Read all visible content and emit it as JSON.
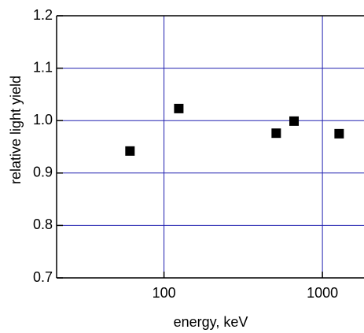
{
  "chart_data": {
    "type": "scatter",
    "x_label": "energy, keV",
    "y_label": "relative light yield",
    "series": [
      {
        "color": "#000000",
        "x": [
          61,
          124,
          511,
          662,
          1275
        ],
        "values": [
          0.942,
          1.023,
          0.976,
          0.999,
          0.975
        ]
      }
    ],
    "xlim": [
      21,
      1830
    ],
    "xscale": "log",
    "xticks": [
      100,
      1000
    ],
    "ylim": [
      0.7,
      1.2
    ],
    "yticks": [
      0.7,
      0.8,
      0.9,
      {
        "value": 1,
        "label": "1.0"
      },
      1.1,
      1.2
    ],
    "grid": true,
    "grid_color": "#2020b0"
  }
}
